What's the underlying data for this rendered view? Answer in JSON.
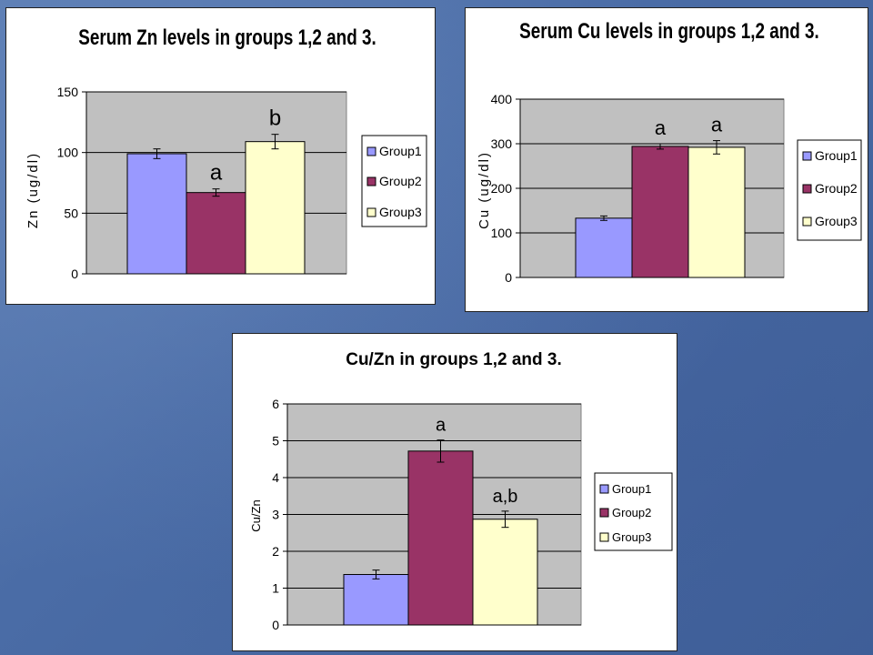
{
  "colors": {
    "group1": "#9999ff",
    "group2": "#993366",
    "group3": "#ffffcc",
    "plot_bg": "#c0c0c0"
  },
  "chart_data": [
    {
      "id": "zn",
      "type": "bar",
      "title": "Serum Zn levels in groups 1,2 and 3.",
      "ylabel": "Zn (ug/dl)",
      "ylim": [
        0,
        150
      ],
      "yticks": [
        0,
        50,
        100,
        150
      ],
      "yticklabels": [
        "0",
        "50",
        "100",
        "150"
      ],
      "grid": true,
      "legend": "right",
      "series": [
        {
          "name": "Group1",
          "value": 99,
          "error": 4,
          "annotation": ""
        },
        {
          "name": "Group2",
          "value": 67,
          "error": 3,
          "annotation": "a"
        },
        {
          "name": "Group3",
          "value": 109,
          "error": 6,
          "annotation": "b"
        }
      ]
    },
    {
      "id": "cu",
      "type": "bar",
      "title": "Serum Cu levels in groups 1,2 and 3.",
      "ylabel": "Cu (ug/dl)",
      "ylim": [
        0,
        400
      ],
      "yticks": [
        0,
        100,
        200,
        300,
        400
      ],
      "yticklabels": [
        "0",
        "100",
        "200",
        "300",
        "400"
      ],
      "grid": true,
      "legend": "right",
      "series": [
        {
          "name": "Group1",
          "value": 133,
          "error": 5,
          "annotation": ""
        },
        {
          "name": "Group2",
          "value": 294,
          "error": 6,
          "annotation": "a"
        },
        {
          "name": "Group3",
          "value": 292,
          "error": 15,
          "annotation": "a"
        }
      ]
    },
    {
      "id": "ratio",
      "type": "bar",
      "title": "Cu/Zn in groups 1,2 and 3.",
      "ylabel": "Cu/Zn",
      "ylim": [
        0,
        6
      ],
      "yticks": [
        0,
        1,
        2,
        3,
        4,
        5,
        6
      ],
      "yticklabels": [
        "0",
        "1",
        "2",
        "3",
        "4",
        "5",
        "6"
      ],
      "grid": true,
      "legend": "right",
      "series": [
        {
          "name": "Group1",
          "value": 1.37,
          "error": 0.12,
          "annotation": ""
        },
        {
          "name": "Group2",
          "value": 4.72,
          "error": 0.3,
          "annotation": "a"
        },
        {
          "name": "Group3",
          "value": 2.87,
          "error": 0.22,
          "annotation": "a,b"
        }
      ]
    }
  ]
}
